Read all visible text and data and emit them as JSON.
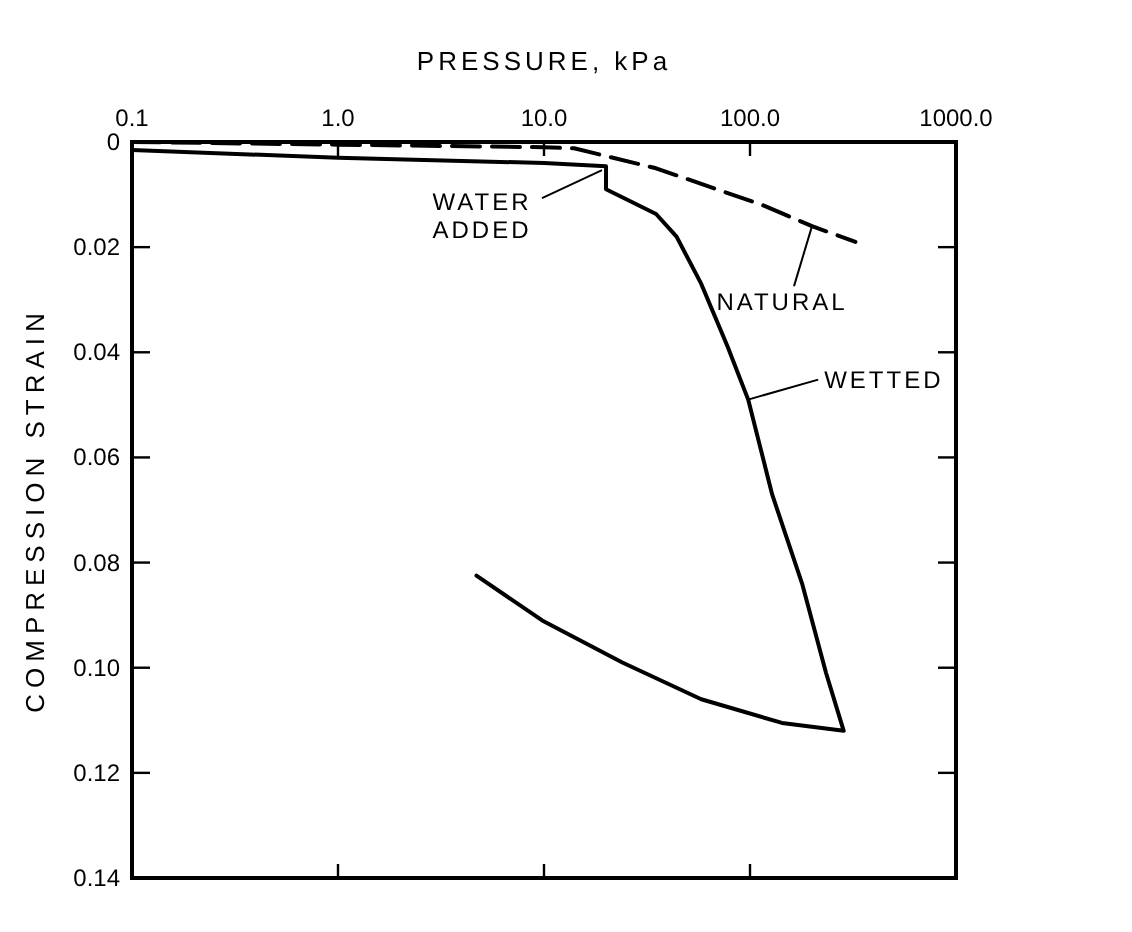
{
  "chart_data": {
    "type": "line",
    "xlabel": "PRESSURE, kPa",
    "ylabel": "COMPRESSION STRAIN",
    "log": "x",
    "xlim": [
      0.1,
      1000
    ],
    "xticks": [
      {
        "value": 0.1,
        "label": "0.1"
      },
      {
        "value": 1,
        "label": "1.0"
      },
      {
        "value": 10,
        "label": "10.0"
      },
      {
        "value": 100,
        "label": "100.0"
      },
      {
        "value": 1000,
        "label": "1000.0"
      }
    ],
    "ylim": [
      0.14,
      0
    ],
    "yticks": [
      {
        "value": 0,
        "label": "0"
      },
      {
        "value": 0.02,
        "label": "0.02"
      },
      {
        "value": 0.04,
        "label": "0.04"
      },
      {
        "value": 0.06,
        "label": "0.06"
      },
      {
        "value": 0.08,
        "label": "0.08"
      },
      {
        "value": 0.1,
        "label": "0.10"
      },
      {
        "value": 0.12,
        "label": "0.12"
      },
      {
        "value": 0.14,
        "label": "0.14"
      }
    ],
    "grid": false,
    "series": [
      {
        "name": "NATURAL",
        "color": "#000000",
        "line_style": "dashed",
        "x": [
          0.1,
          1,
          10,
          14,
          35,
          115,
          200,
          325
        ],
        "values": [
          0,
          0.0005,
          0.001,
          0.0012,
          0.005,
          0.012,
          0.016,
          0.019
        ]
      },
      {
        "name": "WETTED",
        "color": "#000000",
        "line_style": "solid",
        "x": [
          0.1,
          1,
          10,
          20,
          20,
          35,
          44,
          58,
          78,
          98,
          128,
          179,
          234,
          285,
          143,
          58,
          24,
          9.8,
          4.7
        ],
        "values": [
          0.0015,
          0.003,
          0.004,
          0.0046,
          0.009,
          0.0137,
          0.018,
          0.027,
          0.039,
          0.049,
          0.067,
          0.084,
          0.101,
          0.112,
          0.1105,
          0.106,
          0.099,
          0.091,
          0.0825
        ]
      }
    ],
    "annotations": [
      {
        "text": "WATER ADDED",
        "x": 20,
        "y": 0.0046
      }
    ]
  }
}
